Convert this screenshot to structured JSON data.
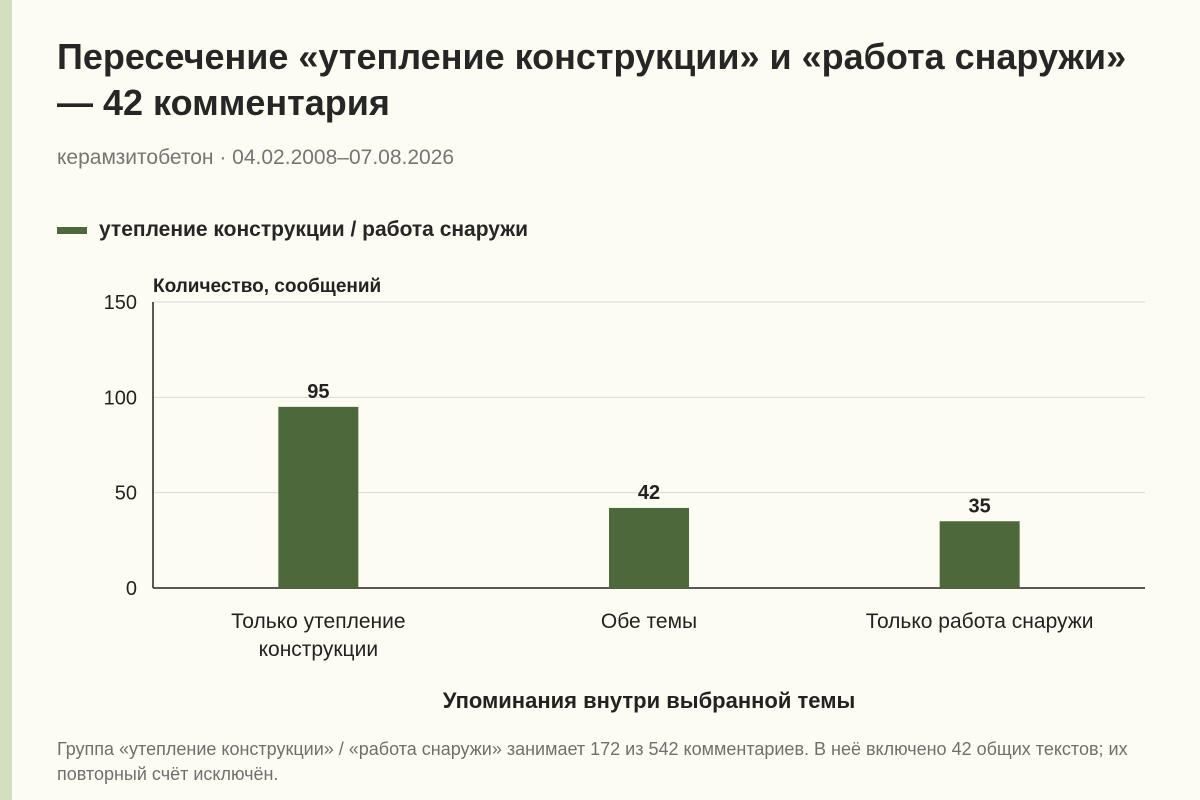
{
  "title": "Пересечение «утепление конструкции» и «работа снаружи» — 42 комментария",
  "subtitle": "керамзитобетон · 04.02.2008–07.08.2026",
  "footnote": "Группа «утепление конструкции» / «работа снаружи» занимает 172 из 542 комментариев. В неё включено 42 общих текстов; их повторный счёт исключён.",
  "colors": {
    "bar": "#4d683b",
    "grid": "#d9d9d9",
    "axis": "#222222",
    "background": "#fdfcf2"
  },
  "chart_data": {
    "type": "bar",
    "legend": [
      "утепление конструкции / работа снаружи"
    ],
    "ylabel": "Количество, сообщений",
    "xlabel": "Упоминания внутри выбранной темы",
    "ylim": [
      0,
      150
    ],
    "yticks": [
      0,
      50,
      100,
      150
    ],
    "grid": true,
    "legend_position": "top-left",
    "categories": [
      [
        "Только утепление",
        "конструкции"
      ],
      [
        "Обе темы"
      ],
      [
        "Только работа снаружи"
      ]
    ],
    "series": [
      {
        "name": "утепление конструкции / работа снаружи",
        "values": [
          95,
          42,
          35
        ]
      }
    ]
  }
}
